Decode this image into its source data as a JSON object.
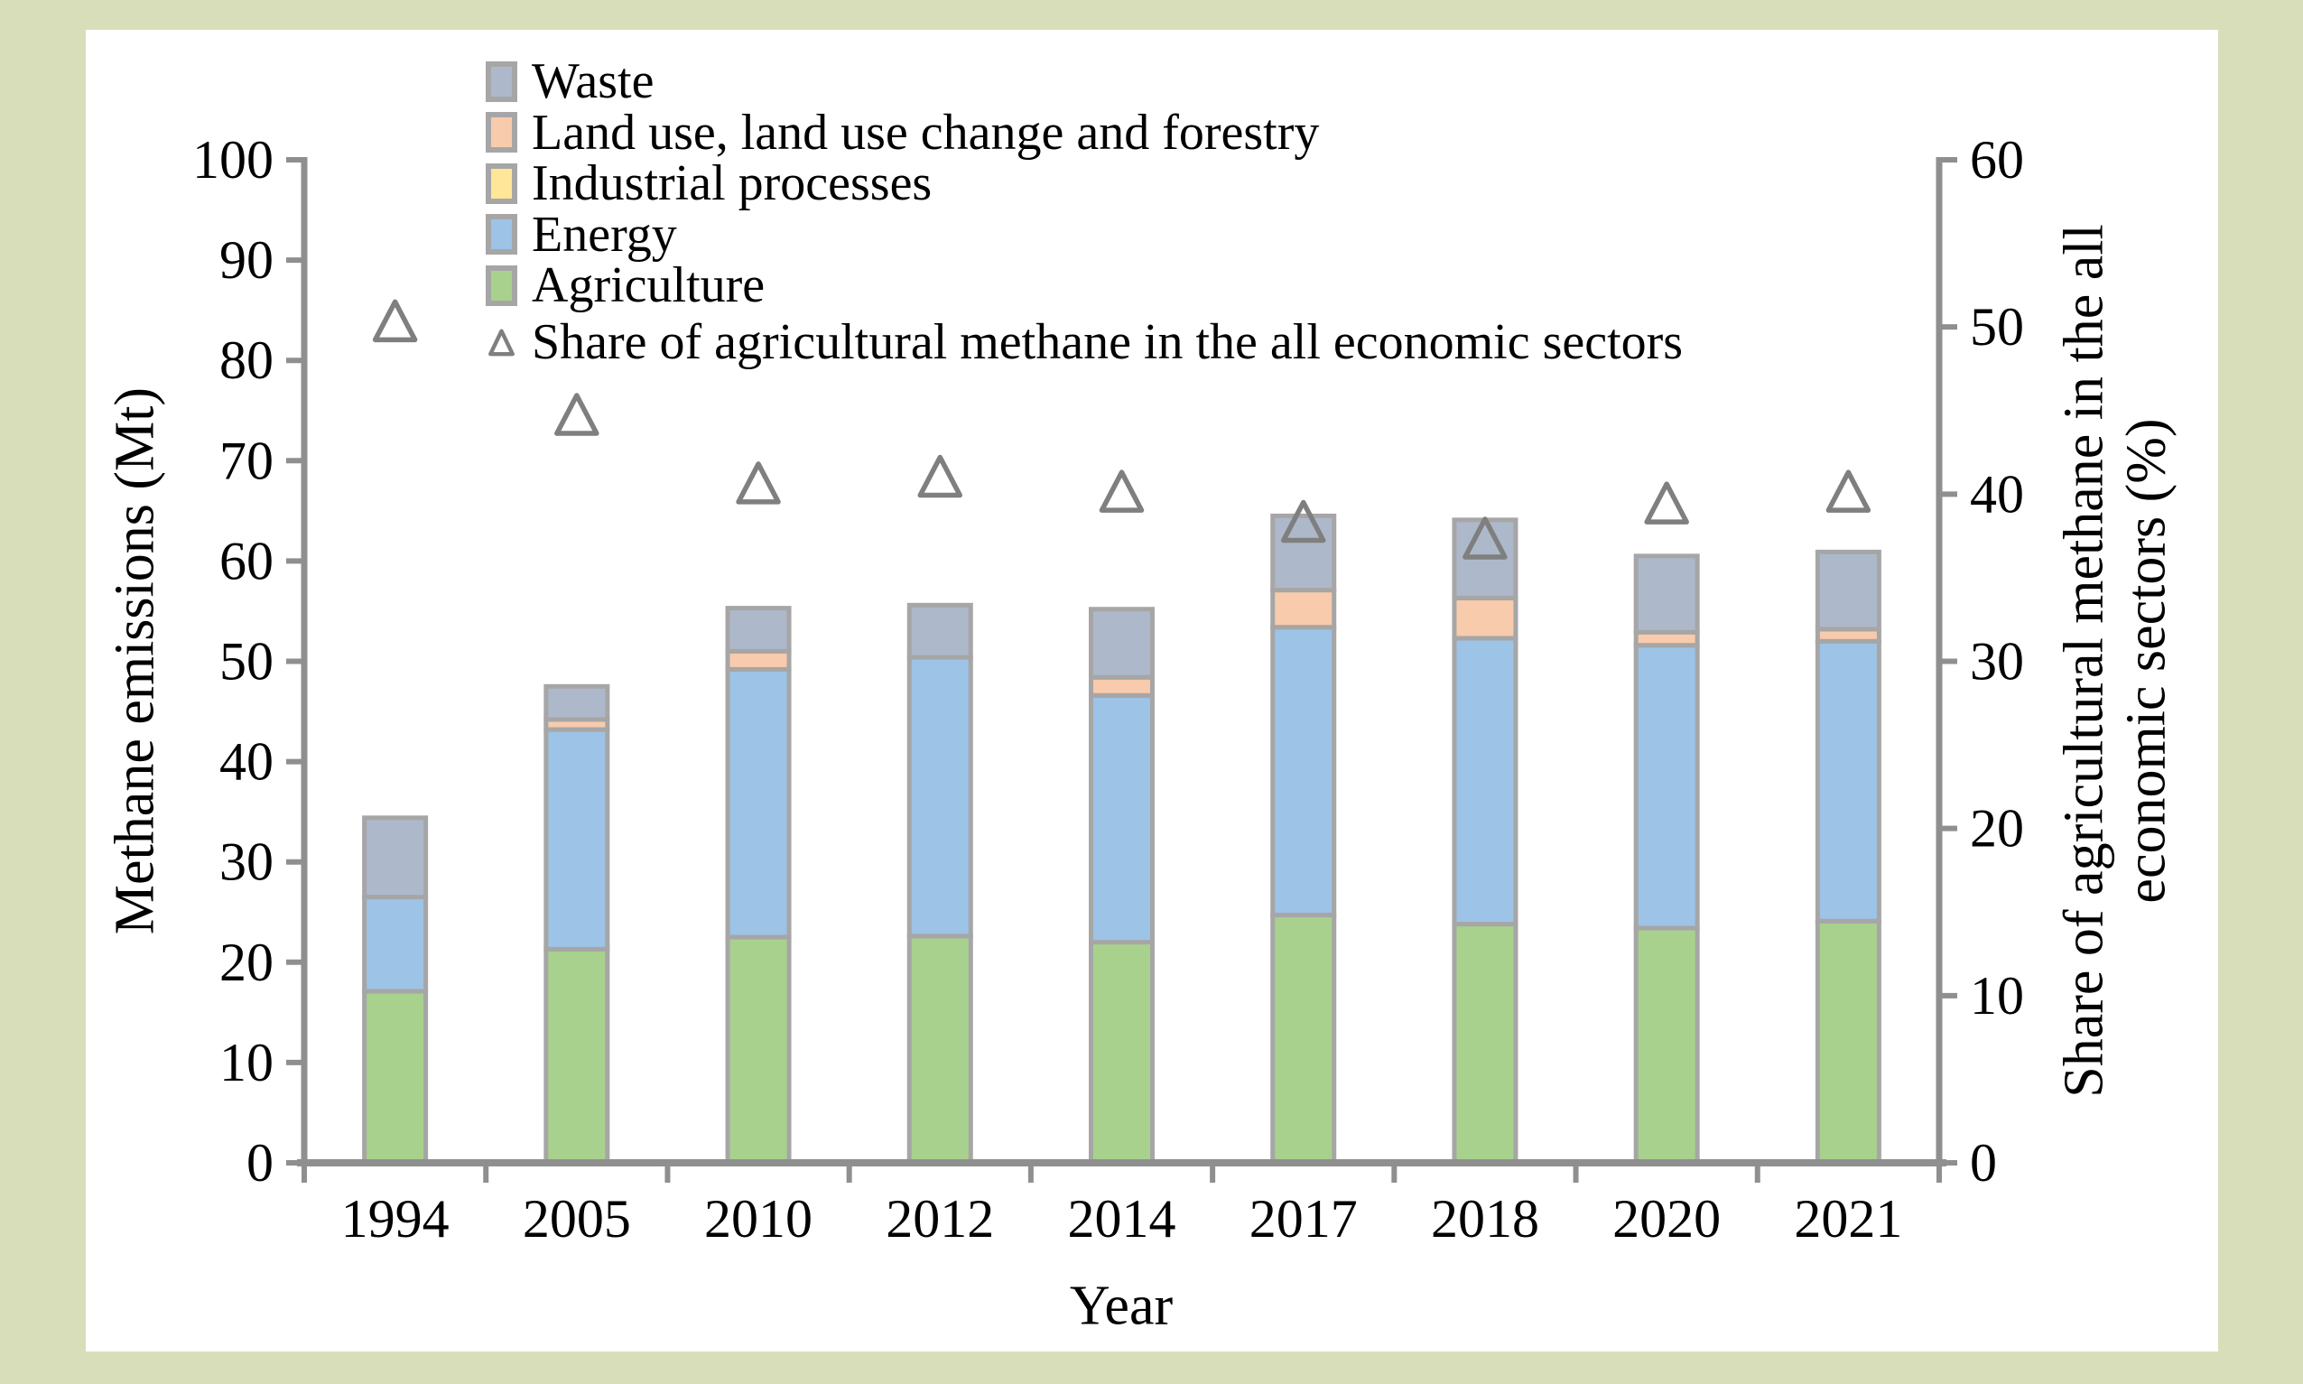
{
  "page": {
    "background_color": "#d8deb9",
    "panel_background_color": "#ffffff"
  },
  "chart_data": {
    "type": "bar",
    "subtype": "stacked-bar-with-scatter-overlay",
    "categories": [
      "1994",
      "2005",
      "2010",
      "2012",
      "2014",
      "2017",
      "2018",
      "2020",
      "2021"
    ],
    "series": [
      {
        "name": "Agriculture",
        "color": "#a9d18e",
        "values": [
          17.1,
          21.3,
          22.5,
          22.6,
          22.0,
          24.7,
          23.8,
          23.4,
          24.1
        ]
      },
      {
        "name": "Energy",
        "color": "#9dc3e6",
        "values": [
          9.4,
          21.9,
          26.7,
          27.8,
          24.6,
          28.7,
          28.5,
          28.2,
          27.9
        ]
      },
      {
        "name": "Industrial processes",
        "color": "#ffe699",
        "values": [
          0,
          0,
          0,
          0,
          0,
          0,
          0,
          0,
          0
        ]
      },
      {
        "name": "Land use, land use change and forestry",
        "color": "#f8cbad",
        "values": [
          0,
          1.0,
          1.8,
          0,
          1.8,
          3.7,
          4.0,
          1.3,
          1.2
        ]
      },
      {
        "name": "Waste",
        "color": "#adb9ca",
        "values": [
          7.9,
          3.3,
          4.3,
          5.2,
          6.8,
          7.4,
          7.8,
          7.6,
          7.7
        ]
      }
    ],
    "scatter": {
      "name": "Share of agricultural methane in the all economic sectors",
      "marker": "triangle-outline",
      "marker_color": "#7f7f7f",
      "axis": "right",
      "values": [
        50.1,
        44.5,
        40.4,
        40.8,
        39.9,
        38.1,
        37.1,
        39.2,
        39.9
      ]
    },
    "xlabel": "Year",
    "ylabel_left": "Methane emissions (Mt)",
    "ylabel_right_line1": "Share of agricultural methane in the all",
    "ylabel_right_line2": "economic sectors (%)",
    "y_left": {
      "min": 0,
      "max": 100,
      "step": 10,
      "ticks": [
        "0",
        "10",
        "20",
        "30",
        "40",
        "50",
        "60",
        "70",
        "80",
        "90",
        "100"
      ]
    },
    "y_right": {
      "min": 0,
      "max": 60,
      "step": 10,
      "ticks": [
        "0",
        "10",
        "20",
        "30",
        "40",
        "50",
        "60"
      ]
    },
    "grid": false,
    "legend_position": "top-left-inside",
    "bar_border_color": "#a6a6a6",
    "axis_color": "#8f8f8f"
  },
  "legend": {
    "items": [
      {
        "label": "Waste",
        "swatch": "square",
        "color": "#adb9ca"
      },
      {
        "label": "Land use, land use change and forestry",
        "swatch": "square",
        "color": "#f8cbad"
      },
      {
        "label": "Industrial processes",
        "swatch": "square",
        "color": "#ffe699"
      },
      {
        "label": "Energy",
        "swatch": "square",
        "color": "#9dc3e6"
      },
      {
        "label": "Agriculture",
        "swatch": "square",
        "color": "#a9d18e"
      },
      {
        "label": "Share of agricultural methane in the all economic sectors",
        "swatch": "triangle",
        "color": "#7f7f7f"
      }
    ]
  }
}
